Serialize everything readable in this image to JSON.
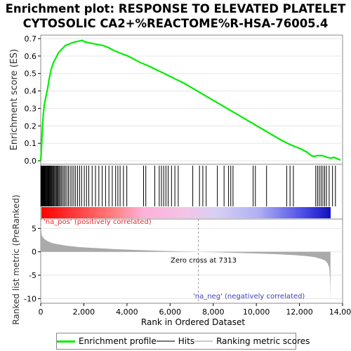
{
  "title_line1": "Enrichment plot: RESPONSE TO ELEVATED PLATELET",
  "title_line2": "CYTOSOLIC CA2+%REACTOME%R-HSA-76005.4",
  "legend": {
    "items": [
      {
        "label": "Enrichment profile",
        "color": "#00ff00"
      },
      {
        "label": "Hits",
        "color": "#888888"
      },
      {
        "label": "Ranking metric scores",
        "color": "#dddddd"
      }
    ]
  },
  "chart_data": [
    {
      "type": "line",
      "ylabel": "Enrichment score (ES)",
      "ylim": [
        -0.02,
        0.72
      ],
      "yticks": [
        "0.0",
        "0.1",
        "0.2",
        "0.3",
        "0.4",
        "0.5",
        "0.6",
        "0.7"
      ],
      "xlim": [
        0,
        13500
      ],
      "series": [
        {
          "color": "#00ff00",
          "x": [
            0,
            40,
            80,
            120,
            160,
            220,
            300,
            380,
            460,
            560,
            680,
            800,
            950,
            1100,
            1300,
            1500,
            1700,
            1850,
            2000,
            2200,
            2400,
            2600,
            2800,
            3000,
            3300,
            3600,
            3900,
            4200,
            4500,
            4800,
            5200,
            5600,
            6000,
            6400,
            6800,
            7200,
            7600,
            8000,
            8400,
            8800,
            9200,
            9600,
            10000,
            10400,
            10800,
            11200,
            11600,
            11900,
            12100,
            12200,
            12400,
            12600,
            12800,
            13000,
            13100,
            13200,
            13300,
            13400
          ],
          "y": [
            0.0,
            0.09,
            0.2,
            0.27,
            0.32,
            0.36,
            0.41,
            0.47,
            0.52,
            0.56,
            0.59,
            0.62,
            0.64,
            0.66,
            0.67,
            0.68,
            0.685,
            0.69,
            0.68,
            0.675,
            0.67,
            0.665,
            0.66,
            0.65,
            0.63,
            0.615,
            0.6,
            0.58,
            0.56,
            0.545,
            0.52,
            0.495,
            0.47,
            0.445,
            0.415,
            0.385,
            0.355,
            0.325,
            0.295,
            0.265,
            0.235,
            0.205,
            0.175,
            0.145,
            0.115,
            0.09,
            0.07,
            0.05,
            0.03,
            0.025,
            0.03,
            0.03,
            0.02,
            0.015,
            0.02,
            0.015,
            0.01,
            0.005
          ]
        }
      ]
    },
    {
      "type": "hits",
      "xlim": [
        0,
        13500
      ],
      "hits": [
        10,
        30,
        50,
        70,
        90,
        110,
        130,
        150,
        170,
        190,
        210,
        240,
        270,
        300,
        330,
        360,
        390,
        420,
        450,
        480,
        510,
        540,
        580,
        620,
        660,
        700,
        740,
        780,
        820,
        870,
        920,
        980,
        1040,
        1100,
        1170,
        1240,
        1320,
        1400,
        1480,
        1560,
        1650,
        1740,
        1830,
        1950,
        2050,
        2150,
        2300,
        2450,
        2600,
        2750,
        2900,
        3050,
        3200,
        3350,
        3450,
        3550,
        3700,
        3850,
        4600,
        4700,
        5100,
        5300,
        5400,
        5500,
        5600,
        5700,
        5850,
        6000,
        6150,
        6800,
        7100,
        7250,
        7400,
        7900,
        8200,
        8400,
        8500,
        8600,
        9500,
        9600,
        10100,
        11000,
        11150,
        11300,
        12300,
        12380,
        12460,
        12540,
        12620,
        12700,
        12780,
        12900,
        13050,
        13180
      ]
    },
    {
      "type": "area",
      "ylabel": "Ranked list metric (PreRanked)",
      "ylim": [
        -11,
        7
      ],
      "yticks": [
        "5",
        "0",
        "-5",
        "-10"
      ],
      "xlabel": "Rank in Ordered Dataset",
      "xlim": [
        0,
        14000
      ],
      "xticks": [
        "0",
        "2,000",
        "4,000",
        "6,000",
        "8,000",
        "10,000",
        "12,000",
        "14,000"
      ],
      "x": [
        0,
        50,
        150,
        300,
        500,
        800,
        1200,
        1800,
        2500,
        3500,
        4500,
        5500,
        6500,
        7313,
        8000,
        9000,
        10000,
        11000,
        11800,
        12300,
        12700,
        13000,
        13200,
        13300,
        13380,
        13420,
        13440
      ],
      "y": [
        6.0,
        3.5,
        2.8,
        2.3,
        1.9,
        1.6,
        1.3,
        1.0,
        0.8,
        0.55,
        0.38,
        0.22,
        0.08,
        0.0,
        -0.08,
        -0.22,
        -0.36,
        -0.52,
        -0.72,
        -0.92,
        -1.15,
        -1.5,
        -1.9,
        -2.4,
        -3.4,
        -6.0,
        -10.5
      ],
      "annotations": {
        "pos": "'na_pos' (positively correlated)",
        "neg": "'na_neg' (negatively correlated)",
        "zero": "Zero cross at 7313"
      },
      "zero_cross": 7313
    }
  ]
}
